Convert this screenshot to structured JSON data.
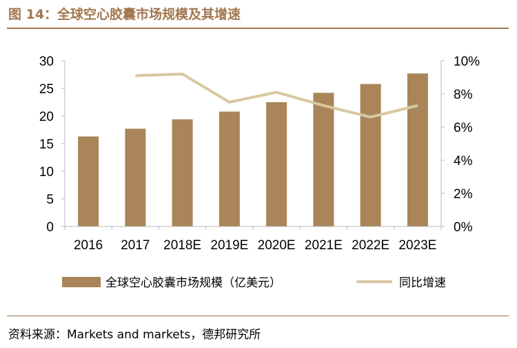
{
  "header": {
    "title": "图 14：全球空心胶囊市场规模及其增速"
  },
  "footer": {
    "source": "资料来源：Markets and markets，德邦研究所"
  },
  "colors": {
    "bar": "#a98559",
    "line": "#d8c8a0",
    "accent": "#a1774f",
    "axis": "#b9b9b9"
  },
  "chart_data": {
    "type": "bar",
    "categories": [
      "2016",
      "2017",
      "2018E",
      "2019E",
      "2020E",
      "2021E",
      "2022E",
      "2023E"
    ],
    "series": [
      {
        "name": "全球空心胶囊市场规模（亿美元）",
        "type": "bar",
        "axis": "left",
        "values": [
          16.3,
          17.7,
          19.4,
          20.8,
          22.5,
          24.2,
          25.8,
          27.7
        ]
      },
      {
        "name": "同比增速",
        "type": "line",
        "axis": "right",
        "values": [
          null,
          9.1,
          9.2,
          7.5,
          8.1,
          7.3,
          6.6,
          7.3
        ]
      }
    ],
    "y_left": {
      "ylim": [
        0,
        30
      ],
      "ticks": [
        "0",
        "5",
        "10",
        "15",
        "20",
        "25",
        "30"
      ]
    },
    "y_right": {
      "ylim": [
        0,
        10
      ],
      "ticks": [
        "0%",
        "2%",
        "4%",
        "6%",
        "8%",
        "10%"
      ]
    },
    "grid": false,
    "legend_position": "bottom"
  }
}
